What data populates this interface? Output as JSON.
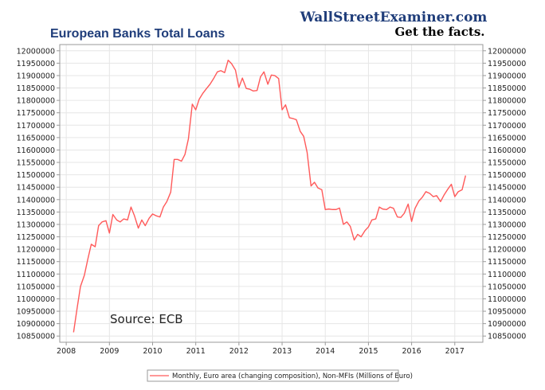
{
  "brand": {
    "name": "WallStreetExaminer.com",
    "tagline": "Get the facts."
  },
  "colors": {
    "title": "#1f3d7a",
    "brand": "#1f3d7a",
    "series": "#ff5a5a",
    "grid": "#e6e6e6",
    "axis": "#9a9a9a"
  },
  "chart_data": {
    "type": "line",
    "title": "European Banks Total Loans",
    "annotation": "Source: ECB",
    "xlabel": "",
    "ylabel": "",
    "xlim": [
      2007.85,
      2017.65
    ],
    "ylim": [
      10825000,
      12025000
    ],
    "x_ticks": [
      2008,
      2009,
      2010,
      2011,
      2012,
      2013,
      2014,
      2015,
      2016,
      2017
    ],
    "y_ticks": [
      10850000,
      10900000,
      10950000,
      11000000,
      11050000,
      11100000,
      11150000,
      11200000,
      11250000,
      11300000,
      11350000,
      11400000,
      11450000,
      11500000,
      11550000,
      11600000,
      11650000,
      11700000,
      11750000,
      11800000,
      11850000,
      11900000,
      11950000,
      12000000
    ],
    "y_ticks_both_sides": true,
    "grid": true,
    "legend_position": "bottom-center",
    "series": [
      {
        "name": "Monthly, Euro area (changing composition), Non-MFIs (Millions of Euro)",
        "points": [
          [
            2008.17,
            10865000
          ],
          [
            2008.25,
            10960000
          ],
          [
            2008.33,
            11050000
          ],
          [
            2008.42,
            11095000
          ],
          [
            2008.5,
            11160000
          ],
          [
            2008.58,
            11220000
          ],
          [
            2008.67,
            11210000
          ],
          [
            2008.75,
            11295000
          ],
          [
            2008.83,
            11310000
          ],
          [
            2008.92,
            11315000
          ],
          [
            2009.0,
            11265000
          ],
          [
            2009.08,
            11340000
          ],
          [
            2009.17,
            11318000
          ],
          [
            2009.25,
            11310000
          ],
          [
            2009.33,
            11322000
          ],
          [
            2009.42,
            11318000
          ],
          [
            2009.5,
            11370000
          ],
          [
            2009.58,
            11335000
          ],
          [
            2009.67,
            11285000
          ],
          [
            2009.75,
            11318000
          ],
          [
            2009.83,
            11295000
          ],
          [
            2009.92,
            11325000
          ],
          [
            2010.0,
            11342000
          ],
          [
            2010.08,
            11335000
          ],
          [
            2010.17,
            11330000
          ],
          [
            2010.25,
            11370000
          ],
          [
            2010.33,
            11392000
          ],
          [
            2010.42,
            11430000
          ],
          [
            2010.5,
            11562000
          ],
          [
            2010.58,
            11562000
          ],
          [
            2010.67,
            11555000
          ],
          [
            2010.75,
            11582000
          ],
          [
            2010.83,
            11645000
          ],
          [
            2010.92,
            11785000
          ],
          [
            2011.0,
            11762000
          ],
          [
            2011.08,
            11805000
          ],
          [
            2011.17,
            11830000
          ],
          [
            2011.25,
            11848000
          ],
          [
            2011.33,
            11865000
          ],
          [
            2011.42,
            11890000
          ],
          [
            2011.5,
            11915000
          ],
          [
            2011.58,
            11920000
          ],
          [
            2011.67,
            11912000
          ],
          [
            2011.75,
            11962000
          ],
          [
            2011.83,
            11948000
          ],
          [
            2011.92,
            11922000
          ],
          [
            2012.0,
            11852000
          ],
          [
            2012.08,
            11890000
          ],
          [
            2012.17,
            11848000
          ],
          [
            2012.25,
            11845000
          ],
          [
            2012.33,
            11838000
          ],
          [
            2012.42,
            11840000
          ],
          [
            2012.5,
            11895000
          ],
          [
            2012.58,
            11915000
          ],
          [
            2012.67,
            11865000
          ],
          [
            2012.75,
            11902000
          ],
          [
            2012.83,
            11900000
          ],
          [
            2012.92,
            11888000
          ],
          [
            2013.0,
            11762000
          ],
          [
            2013.08,
            11782000
          ],
          [
            2013.17,
            11730000
          ],
          [
            2013.25,
            11727000
          ],
          [
            2013.33,
            11722000
          ],
          [
            2013.42,
            11675000
          ],
          [
            2013.5,
            11655000
          ],
          [
            2013.58,
            11590000
          ],
          [
            2013.67,
            11455000
          ],
          [
            2013.75,
            11470000
          ],
          [
            2013.83,
            11447000
          ],
          [
            2013.92,
            11440000
          ],
          [
            2014.0,
            11360000
          ],
          [
            2014.08,
            11362000
          ],
          [
            2014.17,
            11360000
          ],
          [
            2014.25,
            11360000
          ],
          [
            2014.33,
            11366000
          ],
          [
            2014.42,
            11300000
          ],
          [
            2014.5,
            11310000
          ],
          [
            2014.58,
            11292000
          ],
          [
            2014.67,
            11237000
          ],
          [
            2014.75,
            11260000
          ],
          [
            2014.83,
            11250000
          ],
          [
            2014.92,
            11275000
          ],
          [
            2015.0,
            11290000
          ],
          [
            2015.08,
            11318000
          ],
          [
            2015.17,
            11322000
          ],
          [
            2015.25,
            11370000
          ],
          [
            2015.33,
            11362000
          ],
          [
            2015.42,
            11360000
          ],
          [
            2015.5,
            11370000
          ],
          [
            2015.58,
            11365000
          ],
          [
            2015.67,
            11330000
          ],
          [
            2015.75,
            11328000
          ],
          [
            2015.83,
            11345000
          ],
          [
            2015.92,
            11382000
          ],
          [
            2016.0,
            11312000
          ],
          [
            2016.08,
            11365000
          ],
          [
            2016.17,
            11395000
          ],
          [
            2016.25,
            11410000
          ],
          [
            2016.33,
            11432000
          ],
          [
            2016.42,
            11425000
          ],
          [
            2016.5,
            11412000
          ],
          [
            2016.58,
            11416000
          ],
          [
            2016.67,
            11392000
          ],
          [
            2016.75,
            11418000
          ],
          [
            2016.83,
            11440000
          ],
          [
            2016.92,
            11462000
          ],
          [
            2017.0,
            11412000
          ],
          [
            2017.08,
            11432000
          ],
          [
            2017.17,
            11440000
          ],
          [
            2017.25,
            11497000
          ]
        ]
      }
    ]
  }
}
